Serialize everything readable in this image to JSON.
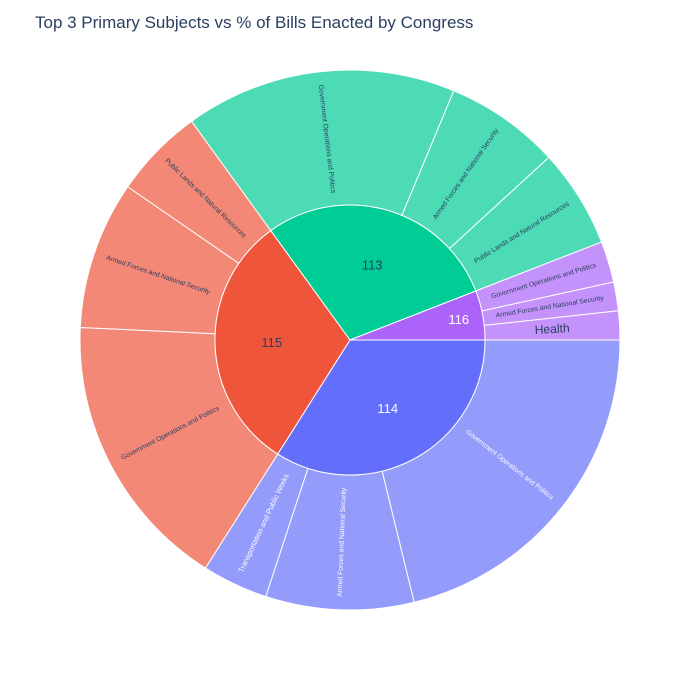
{
  "chart_data": {
    "type": "sunburst",
    "title": "Top 3 Primary Subjects vs % of Bills Enacted by Congress",
    "colors": {
      "114": {
        "inner": "#636efa",
        "outer": "#939bfb"
      },
      "115": {
        "inner": "#ef553b",
        "outer": "#f38876"
      },
      "113": {
        "inner": "#00cc96",
        "outer": "#4ddbb6"
      },
      "116": {
        "inner": "#ab63fa",
        "outer": "#c492fb"
      }
    },
    "groups": [
      {
        "label": "114",
        "children": [
          {
            "label": "Government Operations and Politics",
            "value": 43
          },
          {
            "label": "Armed Forces and National Security",
            "value": 18
          },
          {
            "label": "Transportation and Public Works",
            "value": 8
          }
        ]
      },
      {
        "label": "115",
        "children": [
          {
            "label": "Government Operations and Politics",
            "value": 34
          },
          {
            "label": "Armed Forces and National Security",
            "value": 18
          },
          {
            "label": "Public Lands and Natural Resources",
            "value": 11
          }
        ]
      },
      {
        "label": "113",
        "children": [
          {
            "label": "Government Operations and Politics",
            "value": 33
          },
          {
            "label": "Armed Forces and National Security",
            "value": 14
          },
          {
            "label": "Public Lands and Natural Resources",
            "value": 12
          }
        ]
      },
      {
        "label": "116",
        "children": [
          {
            "label": "Government Operations and Politics",
            "value": 5
          },
          {
            "label": "Armed Forces and National Security",
            "value": 3.5
          },
          {
            "label": "Health",
            "value": 3.5
          }
        ]
      }
    ]
  }
}
